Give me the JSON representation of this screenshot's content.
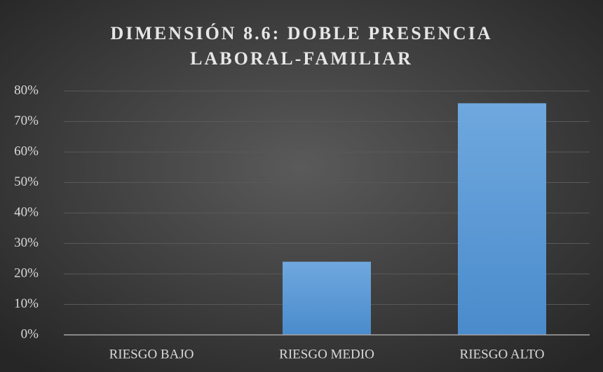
{
  "chart_data": {
    "type": "bar",
    "title": "DIMENSIÓN 8.6: DOBLE PRESENCIA LABORAL-FAMILIAR",
    "categories": [
      "RIESGO BAJO",
      "RIESGO MEDIO",
      "RIESGO ALTO"
    ],
    "values": [
      0,
      24,
      76
    ],
    "color": "#5b9bd5",
    "ylim": [
      0,
      80
    ],
    "yticks": [
      {
        "value": 0,
        "label": "0%"
      },
      {
        "value": 10,
        "label": "10%"
      },
      {
        "value": 20,
        "label": "20%"
      },
      {
        "value": 30,
        "label": "30%"
      },
      {
        "value": 40,
        "label": "40%"
      },
      {
        "value": 50,
        "label": "50%"
      },
      {
        "value": 60,
        "label": "60%"
      },
      {
        "value": 70,
        "label": "70%"
      },
      {
        "value": 80,
        "label": "80%"
      }
    ],
    "grid": true
  }
}
